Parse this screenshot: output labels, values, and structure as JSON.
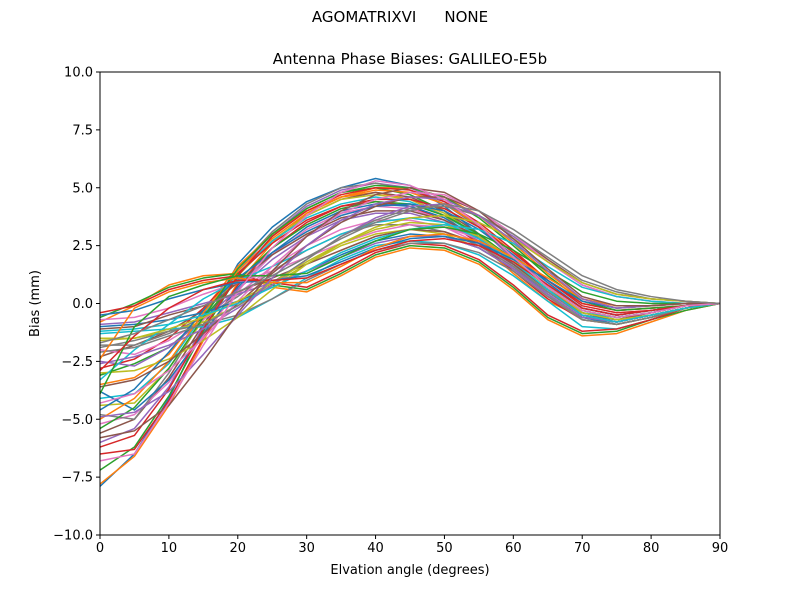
{
  "suptitle": {
    "left": "AGOMATRIXVI",
    "right": "NONE"
  },
  "chart_data": {
    "type": "line",
    "title": "Antenna Phase Biases: GALILEO-E5b",
    "xlabel": "Elvation angle (degrees)",
    "ylabel": "Bias (mm)",
    "xlim": [
      0,
      90
    ],
    "ylim": [
      -10,
      10
    ],
    "x_ticks": [
      "0",
      "10",
      "20",
      "30",
      "40",
      "50",
      "60",
      "70",
      "80",
      "90"
    ],
    "y_ticks": [
      "10.0",
      "7.5",
      "5.0",
      "2.5",
      "0.0",
      "−2.5",
      "−5.0",
      "−7.5",
      "−10.0"
    ],
    "grid": false,
    "legend": "none",
    "x": [
      0,
      5,
      10,
      15,
      20,
      25,
      30,
      35,
      40,
      45,
      50,
      55,
      60,
      65,
      70,
      75,
      80,
      85,
      90
    ],
    "colors": [
      "#1f77b4",
      "#ff7f0e",
      "#2ca02c",
      "#d62728",
      "#9467bd",
      "#8c564b",
      "#e377c2",
      "#7f7f7f",
      "#bcbd22",
      "#17becf"
    ],
    "series": [
      {
        "values": [
          -7.9,
          -6.5,
          -4.1,
          -1.0,
          1.7,
          3.3,
          4.4,
          5.0,
          5.4,
          5.1,
          4.2,
          3.0,
          1.7,
          0.5,
          -0.5,
          -0.7,
          -0.5,
          -0.2,
          0.0
        ]
      },
      {
        "values": [
          -7.8,
          -6.6,
          -4.4,
          -1.6,
          0.9,
          2.6,
          3.9,
          4.6,
          4.8,
          4.5,
          3.8,
          2.6,
          1.3,
          0.1,
          -0.6,
          -0.8,
          -0.5,
          -0.2,
          0.0
        ]
      },
      {
        "values": [
          -7.2,
          -6.2,
          -4.0,
          -1.2,
          1.2,
          2.9,
          4.1,
          4.8,
          5.0,
          4.7,
          4.0,
          2.8,
          1.5,
          0.3,
          -0.6,
          -0.8,
          -0.5,
          -0.2,
          0.0
        ]
      },
      {
        "values": [
          -6.5,
          -6.3,
          -4.2,
          -1.5,
          0.8,
          2.4,
          3.5,
          4.2,
          4.4,
          4.2,
          3.6,
          2.6,
          1.4,
          0.2,
          -0.7,
          -0.9,
          -0.6,
          -0.2,
          0.0
        ]
      },
      {
        "values": [
          -6.0,
          -5.4,
          -3.6,
          -1.0,
          1.4,
          3.0,
          4.2,
          4.9,
          5.2,
          5.0,
          4.4,
          3.3,
          1.9,
          0.7,
          -0.3,
          -0.6,
          -0.4,
          -0.1,
          0.0
        ]
      },
      {
        "values": [
          -5.6,
          -5.0,
          -3.2,
          -0.9,
          1.2,
          2.7,
          3.8,
          4.5,
          4.8,
          4.6,
          4.0,
          3.0,
          1.7,
          0.5,
          -0.5,
          -0.8,
          -0.5,
          -0.2,
          0.0
        ]
      },
      {
        "values": [
          -5.2,
          -4.8,
          -3.4,
          -1.4,
          0.6,
          2.1,
          3.2,
          3.9,
          4.2,
          4.1,
          3.6,
          2.7,
          1.5,
          0.3,
          -0.7,
          -0.9,
          -0.6,
          -0.2,
          0.0
        ]
      },
      {
        "values": [
          -4.8,
          -5.0,
          -3.0,
          -0.6,
          1.5,
          3.1,
          4.3,
          5.0,
          5.2,
          4.9,
          4.3,
          3.3,
          2.0,
          0.8,
          -0.2,
          -0.5,
          -0.3,
          -0.1,
          0.0
        ]
      },
      {
        "values": [
          -4.4,
          -4.3,
          -2.8,
          -0.7,
          1.2,
          2.7,
          3.8,
          4.5,
          4.7,
          4.5,
          3.9,
          2.9,
          1.7,
          0.5,
          -0.4,
          -0.7,
          -0.5,
          -0.2,
          0.0
        ]
      },
      {
        "values": [
          -4.1,
          -3.9,
          -2.6,
          -0.5,
          1.3,
          2.7,
          3.7,
          4.3,
          4.6,
          4.4,
          3.8,
          2.9,
          1.7,
          0.6,
          -0.4,
          -0.6,
          -0.4,
          -0.1,
          0.0
        ]
      },
      {
        "values": [
          -3.8,
          -4.6,
          -3.3,
          -1.3,
          0.7,
          2.2,
          3.3,
          4.0,
          4.3,
          4.2,
          3.7,
          2.8,
          1.6,
          0.4,
          -0.6,
          -0.9,
          -0.6,
          -0.2,
          0.0
        ]
      },
      {
        "values": [
          -3.5,
          -3.2,
          -2.2,
          -0.3,
          1.6,
          3.0,
          4.0,
          4.6,
          4.9,
          4.8,
          4.3,
          3.4,
          2.2,
          1.0,
          0.0,
          -0.3,
          -0.2,
          -0.1,
          0.0
        ]
      },
      {
        "values": [
          -3.1,
          -2.6,
          -1.9,
          -0.6,
          1.0,
          2.4,
          3.4,
          4.1,
          4.4,
          4.3,
          3.8,
          3.0,
          1.9,
          0.7,
          -0.3,
          -0.6,
          -0.4,
          -0.1,
          0.0
        ]
      },
      {
        "values": [
          -2.8,
          -2.4,
          -1.5,
          -0.2,
          1.3,
          2.6,
          3.6,
          4.2,
          4.5,
          4.5,
          4.1,
          3.3,
          2.2,
          1.0,
          0.0,
          -0.3,
          -0.2,
          -0.1,
          0.0
        ]
      },
      {
        "values": [
          -2.5,
          -2.7,
          -1.9,
          -0.7,
          0.6,
          1.9,
          2.9,
          3.6,
          3.9,
          3.9,
          3.5,
          2.7,
          1.6,
          0.5,
          -0.5,
          -0.8,
          -0.5,
          -0.2,
          0.0
        ]
      },
      {
        "values": [
          -2.3,
          -1.8,
          -1.2,
          -0.3,
          0.9,
          2.1,
          3.0,
          3.7,
          4.0,
          4.0,
          3.6,
          2.9,
          1.9,
          0.8,
          -0.2,
          -0.5,
          -0.3,
          -0.1,
          0.0
        ]
      },
      {
        "values": [
          -2.0,
          -2.2,
          -1.6,
          -0.7,
          0.4,
          1.6,
          2.5,
          3.2,
          3.6,
          3.6,
          3.3,
          2.6,
          1.6,
          0.5,
          -0.5,
          -0.8,
          -0.5,
          -0.2,
          0.0
        ]
      },
      {
        "values": [
          -1.8,
          -1.8,
          -1.3,
          -0.6,
          0.3,
          1.4,
          2.3,
          3.0,
          3.4,
          3.4,
          3.1,
          2.5,
          1.6,
          0.5,
          -0.5,
          -0.8,
          -0.5,
          -0.2,
          0.0
        ]
      },
      {
        "values": [
          -1.5,
          -1.5,
          -1.2,
          -0.8,
          -0.1,
          0.8,
          1.7,
          2.5,
          3.0,
          3.2,
          3.0,
          2.4,
          1.5,
          0.4,
          -0.7,
          -0.9,
          -0.6,
          -0.2,
          0.0
        ]
      },
      {
        "values": [
          -1.3,
          -1.2,
          -1.1,
          -1.0,
          -0.6,
          0.2,
          1.1,
          1.9,
          2.5,
          2.7,
          2.6,
          2.1,
          1.2,
          0.1,
          -1.0,
          -1.1,
          -0.7,
          -0.2,
          0.0
        ]
      },
      {
        "values": [
          -1.0,
          -0.9,
          -0.7,
          -0.4,
          0.1,
          0.7,
          1.4,
          2.1,
          2.7,
          3.0,
          2.9,
          2.4,
          1.5,
          0.4,
          -0.6,
          -0.8,
          -0.5,
          -0.2,
          0.0
        ]
      },
      {
        "values": [
          -0.8,
          -0.1,
          0.8,
          1.2,
          1.3,
          0.7,
          0.5,
          1.2,
          2.0,
          2.4,
          2.3,
          1.7,
          0.6,
          -0.7,
          -1.4,
          -1.3,
          -0.8,
          -0.3,
          0.0
        ]
      },
      {
        "values": [
          -0.6,
          0.0,
          0.7,
          1.1,
          1.3,
          0.8,
          0.6,
          1.3,
          2.1,
          2.5,
          2.4,
          1.8,
          0.7,
          -0.6,
          -1.3,
          -1.2,
          -0.7,
          -0.3,
          0.0
        ]
      },
      {
        "values": [
          -0.4,
          -0.1,
          0.6,
          1.0,
          1.2,
          0.9,
          0.7,
          1.4,
          2.2,
          2.6,
          2.5,
          1.9,
          0.8,
          -0.5,
          -1.2,
          -1.1,
          -0.7,
          -0.2,
          0.0
        ]
      },
      {
        "values": [
          -0.9,
          -0.8,
          -0.4,
          0.0,
          0.4,
          0.9,
          1.4,
          2.0,
          2.6,
          2.9,
          2.9,
          2.4,
          1.5,
          0.4,
          -0.6,
          -0.8,
          -0.5,
          -0.2,
          0.0
        ]
      },
      {
        "values": [
          -1.1,
          -1.0,
          -0.5,
          -0.1,
          0.5,
          1.1,
          1.7,
          2.3,
          2.9,
          3.2,
          3.1,
          2.6,
          1.7,
          0.6,
          -0.4,
          -0.7,
          -0.4,
          -0.1,
          0.0
        ]
      },
      {
        "values": [
          -0.7,
          -0.6,
          -0.2,
          0.4,
          0.9,
          1.4,
          2.0,
          2.6,
          3.1,
          3.4,
          3.3,
          2.8,
          1.9,
          0.8,
          -0.2,
          -0.5,
          -0.3,
          -0.1,
          0.0
        ]
      },
      {
        "values": [
          -1.9,
          -1.6,
          -1.2,
          -0.9,
          -0.5,
          0.2,
          1.0,
          1.7,
          2.3,
          2.6,
          2.6,
          2.2,
          1.4,
          0.3,
          -0.7,
          -0.9,
          -0.6,
          -0.2,
          0.0
        ]
      },
      {
        "values": [
          -3.0,
          -2.9,
          -2.4,
          -1.6,
          -0.6,
          0.6,
          1.7,
          2.6,
          3.2,
          3.5,
          3.4,
          2.9,
          1.9,
          0.7,
          -0.4,
          -0.7,
          -0.5,
          -0.2,
          0.0
        ]
      },
      {
        "values": [
          -3.3,
          -2.0,
          -0.9,
          0.2,
          1.0,
          1.6,
          2.3,
          3.0,
          3.5,
          3.7,
          3.5,
          2.8,
          1.8,
          0.6,
          -0.5,
          -0.8,
          -0.5,
          -0.2,
          0.0
        ]
      },
      {
        "values": [
          -4.6,
          -3.7,
          -2.1,
          -0.3,
          1.1,
          2.2,
          3.1,
          3.8,
          4.2,
          4.3,
          4.0,
          3.2,
          2.1,
          0.9,
          -0.2,
          -0.5,
          -0.3,
          -0.1,
          0.0
        ]
      },
      {
        "values": [
          -5.0,
          -4.1,
          -2.5,
          -0.4,
          1.4,
          2.8,
          3.9,
          4.6,
          5.0,
          5.0,
          4.6,
          3.8,
          2.6,
          1.3,
          0.2,
          -0.2,
          -0.1,
          0.0,
          0.0
        ]
      },
      {
        "values": [
          -5.4,
          -4.5,
          -2.8,
          -0.6,
          1.5,
          3.0,
          4.1,
          4.8,
          5.1,
          5.0,
          4.6,
          3.7,
          2.5,
          1.2,
          0.1,
          -0.3,
          -0.2,
          -0.1,
          0.0
        ]
      },
      {
        "values": [
          -6.2,
          -5.7,
          -3.7,
          -1.1,
          1.2,
          2.9,
          4.0,
          4.7,
          5.0,
          4.9,
          4.4,
          3.5,
          2.3,
          1.0,
          -0.1,
          -0.4,
          -0.3,
          -0.1,
          0.0
        ]
      },
      {
        "values": [
          -2.6,
          -2.3,
          -1.8,
          -1.1,
          -0.2,
          0.8,
          1.9,
          2.9,
          3.7,
          4.2,
          4.3,
          3.8,
          2.9,
          1.8,
          0.8,
          0.3,
          0.1,
          0.0,
          0.0
        ]
      },
      {
        "values": [
          -3.6,
          -3.3,
          -2.5,
          -1.3,
          0.0,
          1.3,
          2.5,
          3.5,
          4.2,
          4.6,
          4.6,
          4.0,
          3.0,
          1.9,
          0.9,
          0.4,
          0.2,
          0.1,
          0.0
        ]
      },
      {
        "values": [
          -4.3,
          -3.9,
          -2.9,
          -1.5,
          0.1,
          1.6,
          2.9,
          3.9,
          4.5,
          4.8,
          4.7,
          4.0,
          3.0,
          1.8,
          0.8,
          0.3,
          0.1,
          0.0,
          0.0
        ]
      },
      {
        "values": [
          -2.1,
          -1.9,
          -1.4,
          -0.9,
          -0.1,
          0.9,
          1.9,
          2.9,
          3.6,
          4.1,
          4.2,
          3.8,
          3.0,
          2.0,
          1.0,
          0.5,
          0.2,
          0.1,
          0.0
        ]
      },
      {
        "values": [
          -1.6,
          -1.5,
          -1.1,
          -0.6,
          0.1,
          0.9,
          1.8,
          2.6,
          3.3,
          3.7,
          3.8,
          3.5,
          2.8,
          1.8,
          0.9,
          0.4,
          0.2,
          0.1,
          0.0
        ]
      },
      {
        "values": [
          -1.2,
          -1.1,
          -0.9,
          -0.5,
          0.0,
          0.7,
          1.4,
          2.2,
          2.8,
          3.2,
          3.4,
          3.2,
          2.6,
          1.6,
          0.7,
          0.3,
          0.1,
          0.0,
          0.0
        ]
      },
      {
        "values": [
          -0.5,
          -0.3,
          0.2,
          0.6,
          0.9,
          1.0,
          1.2,
          1.8,
          2.4,
          2.8,
          2.9,
          2.6,
          1.9,
          1.0,
          0.1,
          -0.2,
          -0.1,
          0.0,
          0.0
        ]
      },
      {
        "values": [
          -2.4,
          -0.2,
          0.5,
          0.9,
          1.1,
          0.9,
          0.9,
          1.6,
          2.4,
          2.9,
          3.0,
          2.7,
          2.0,
          1.1,
          0.2,
          -0.1,
          -0.1,
          0.0,
          0.0
        ]
      },
      {
        "values": [
          -3.9,
          -1.0,
          0.3,
          0.8,
          1.2,
          1.2,
          1.3,
          2.0,
          2.7,
          3.2,
          3.3,
          3.0,
          2.3,
          1.4,
          0.5,
          0.1,
          0.0,
          0.0,
          0.0
        ]
      },
      {
        "values": [
          -2.9,
          -1.4,
          -0.2,
          0.6,
          1.0,
          1.0,
          1.1,
          1.7,
          2.3,
          2.7,
          2.8,
          2.5,
          1.8,
          0.8,
          -0.2,
          -0.5,
          -0.3,
          -0.1,
          0.0
        ]
      },
      {
        "values": [
          -4.9,
          -4.7,
          -3.8,
          -2.2,
          -0.5,
          1.1,
          2.5,
          3.6,
          4.3,
          4.6,
          4.5,
          3.8,
          2.7,
          1.4,
          0.2,
          -0.2,
          -0.1,
          0.0,
          0.0
        ]
      },
      {
        "values": [
          -5.8,
          -5.5,
          -4.4,
          -2.5,
          -0.4,
          1.4,
          2.9,
          4.0,
          4.7,
          5.0,
          4.8,
          4.0,
          2.8,
          1.5,
          0.3,
          -0.1,
          -0.1,
          0.0,
          0.0
        ]
      },
      {
        "values": [
          -6.8,
          -6.5,
          -4.3,
          -1.8,
          0.5,
          2.4,
          3.8,
          4.8,
          5.3,
          5.1,
          4.5,
          3.4,
          2.0,
          0.7,
          -0.3,
          -0.6,
          -0.4,
          -0.1,
          0.0
        ]
      },
      {
        "values": [
          -1.7,
          -1.3,
          -0.7,
          -0.1,
          0.5,
          1.2,
          2.0,
          2.8,
          3.5,
          4.0,
          4.3,
          4.0,
          3.2,
          2.2,
          1.2,
          0.6,
          0.3,
          0.1,
          0.0
        ]
      }
    ]
  }
}
